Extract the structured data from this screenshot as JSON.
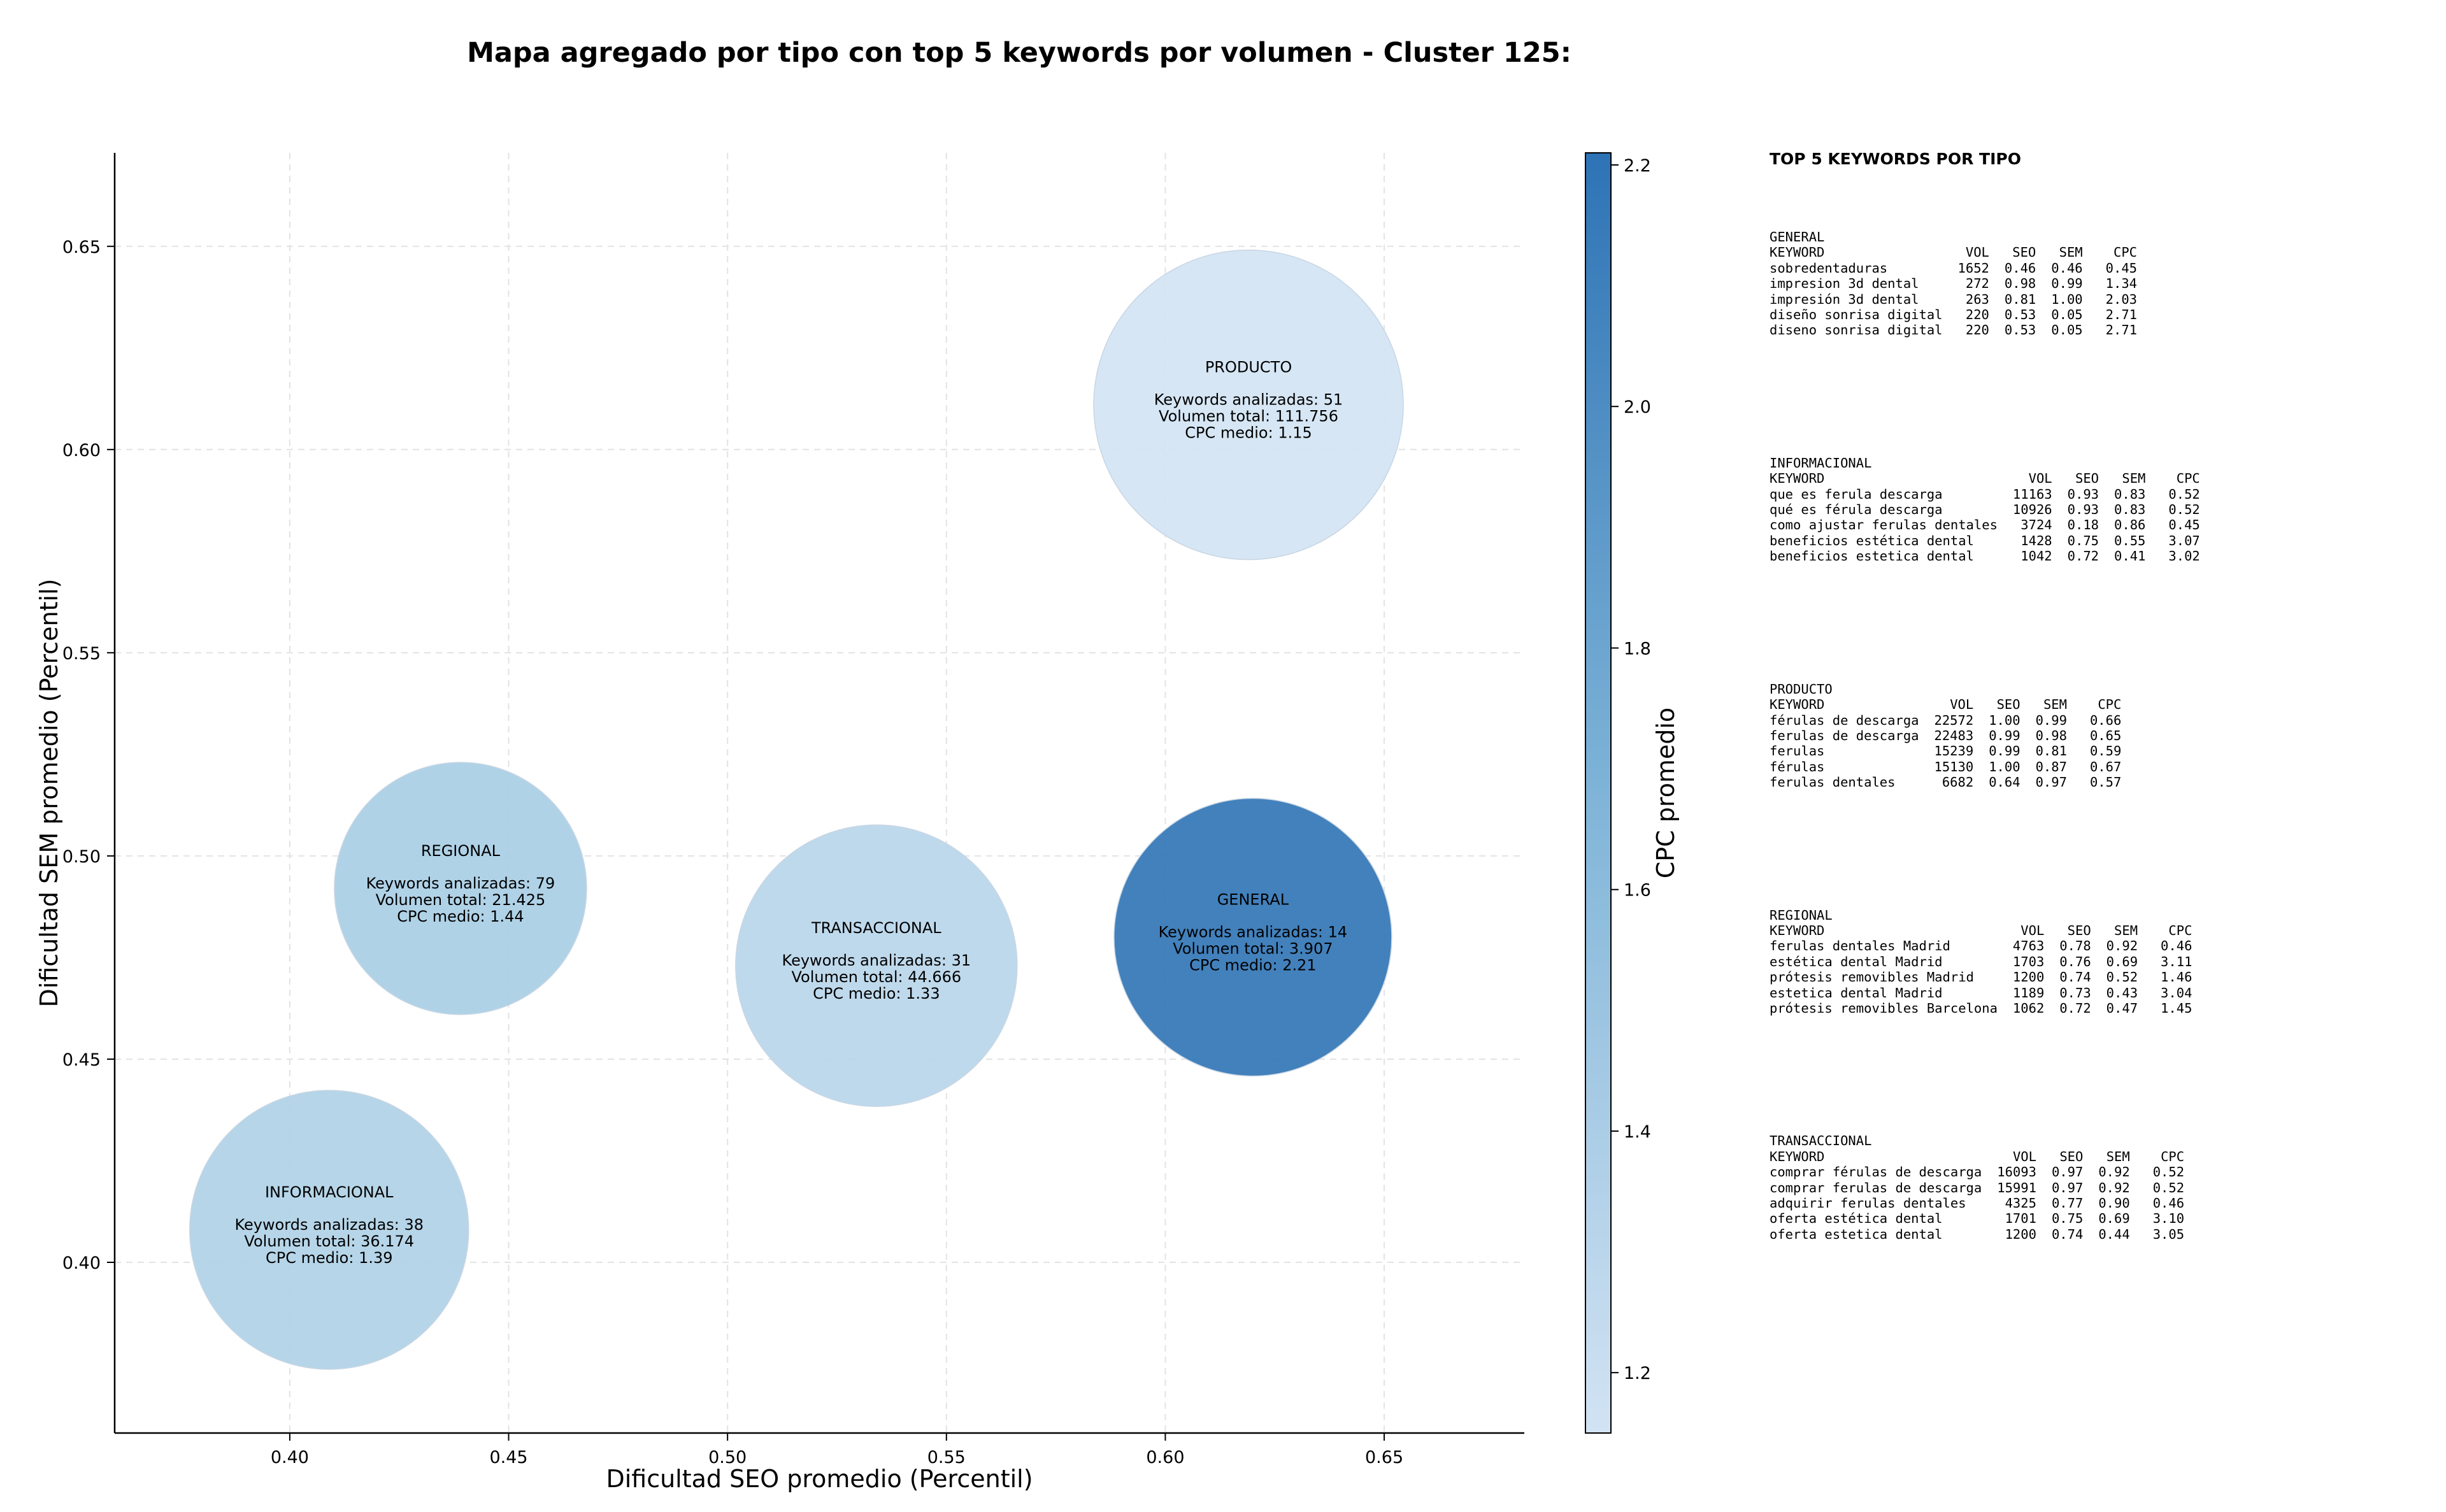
{
  "chart_data": {
    "type": "scatter",
    "title": "Mapa agregado por tipo con top 5 keywords por volumen - Cluster 125:",
    "xlabel": "Dificultad SEO promedio (Percentil)",
    "ylabel": "Dificultad SEM promedio (Percentil)",
    "xlim": [
      0.36,
      0.682
    ],
    "ylim": [
      0.358,
      0.673
    ],
    "xticks": [
      "0.40",
      "0.45",
      "0.50",
      "0.55",
      "0.60",
      "0.65"
    ],
    "yticks": [
      "0.40",
      "0.45",
      "0.50",
      "0.55",
      "0.60",
      "0.65"
    ],
    "grid": true,
    "colorbar": {
      "label": "CPC promedio",
      "range": [
        1.15,
        2.21
      ],
      "ticks": [
        "1.2",
        "1.4",
        "1.6",
        "1.8",
        "2.0",
        "2.2"
      ],
      "colormap": "Blues",
      "color_low": "#d2e3f3",
      "color_high": "#2d73b5"
    },
    "points": [
      {
        "label": "PRODUCTO",
        "x": 0.619,
        "y": 0.611,
        "cpc": 1.15,
        "lines": [
          "Keywords analizadas: 51",
          "Volumen total: 111.756",
          "CPC medio: 1.15"
        ],
        "fill": "#d2e3f3"
      },
      {
        "label": "REGIONAL",
        "x": 0.439,
        "y": 0.492,
        "cpc": 1.44,
        "lines": [
          "Keywords analizadas: 79",
          "Volumen total: 21.425",
          "CPC medio: 1.44"
        ],
        "fill": "#a7cde4"
      },
      {
        "label": "TRANSACCIONAL",
        "x": 0.534,
        "y": 0.473,
        "cpc": 1.33,
        "lines": [
          "Keywords analizadas: 31",
          "Volumen total: 44.666",
          "CPC medio: 1.33"
        ],
        "fill": "#b8d5ea"
      },
      {
        "label": "GENERAL",
        "x": 0.62,
        "y": 0.48,
        "cpc": 2.21,
        "lines": [
          "Keywords analizadas: 14",
          "Volumen total: 3.907",
          "CPC medio: 2.21"
        ],
        "fill": "#2d73b5"
      },
      {
        "label": "INFORMACIONAL",
        "x": 0.409,
        "y": 0.408,
        "cpc": 1.39,
        "lines": [
          "Keywords analizadas: 38",
          "Volumen total: 36.174",
          "CPC medio: 1.39"
        ],
        "fill": "#aed0e6"
      }
    ]
  },
  "panel": {
    "title": "TOP 5 KEYWORDS POR TIPO",
    "columns": [
      "KEYWORD",
      "VOL",
      "SEO",
      "SEM",
      "CPC"
    ],
    "groups": [
      {
        "name": "GENERAL",
        "rows": [
          [
            "sobredentaduras",
            "1652",
            "0.46",
            "0.46",
            "0.45"
          ],
          [
            "impresion 3d dental",
            "272",
            "0.98",
            "0.99",
            "1.34"
          ],
          [
            "impresión 3d dental",
            "263",
            "0.81",
            "1.00",
            "2.03"
          ],
          [
            "diseño sonrisa digital",
            "220",
            "0.53",
            "0.05",
            "2.71"
          ],
          [
            "diseno sonrisa digital",
            "220",
            "0.53",
            "0.05",
            "2.71"
          ]
        ]
      },
      {
        "name": "INFORMACIONAL",
        "rows": [
          [
            "que es ferula descarga",
            "11163",
            "0.93",
            "0.83",
            "0.52"
          ],
          [
            "qué es férula descarga",
            "10926",
            "0.93",
            "0.83",
            "0.52"
          ],
          [
            "como ajustar ferulas dentales",
            "3724",
            "0.18",
            "0.86",
            "0.45"
          ],
          [
            "beneficios estética dental",
            "1428",
            "0.75",
            "0.55",
            "3.07"
          ],
          [
            "beneficios estetica dental",
            "1042",
            "0.72",
            "0.41",
            "3.02"
          ]
        ]
      },
      {
        "name": "PRODUCTO",
        "rows": [
          [
            "férulas de descarga",
            "22572",
            "1.00",
            "0.99",
            "0.66"
          ],
          [
            "ferulas de descarga",
            "22483",
            "0.99",
            "0.98",
            "0.65"
          ],
          [
            "ferulas",
            "15239",
            "0.99",
            "0.81",
            "0.59"
          ],
          [
            "férulas",
            "15130",
            "1.00",
            "0.87",
            "0.67"
          ],
          [
            "ferulas dentales",
            "6682",
            "0.64",
            "0.97",
            "0.57"
          ]
        ]
      },
      {
        "name": "REGIONAL",
        "rows": [
          [
            "ferulas dentales Madrid",
            "4763",
            "0.78",
            "0.92",
            "0.46"
          ],
          [
            "estética dental Madrid",
            "1703",
            "0.76",
            "0.69",
            "3.11"
          ],
          [
            "prótesis removibles Madrid",
            "1200",
            "0.74",
            "0.52",
            "1.46"
          ],
          [
            "estetica dental Madrid",
            "1189",
            "0.73",
            "0.43",
            "3.04"
          ],
          [
            "prótesis removibles Barcelona",
            "1062",
            "0.72",
            "0.47",
            "1.45"
          ]
        ]
      },
      {
        "name": "TRANSACCIONAL",
        "rows": [
          [
            "comprar férulas de descarga",
            "16093",
            "0.97",
            "0.92",
            "0.52"
          ],
          [
            "comprar ferulas de descarga",
            "15991",
            "0.97",
            "0.92",
            "0.52"
          ],
          [
            "adquirir ferulas dentales",
            "4325",
            "0.77",
            "0.90",
            "0.46"
          ],
          [
            "oferta estética dental",
            "1701",
            "0.75",
            "0.69",
            "3.10"
          ],
          [
            "oferta estetica dental",
            "1200",
            "0.74",
            "0.44",
            "3.05"
          ]
        ]
      }
    ]
  }
}
